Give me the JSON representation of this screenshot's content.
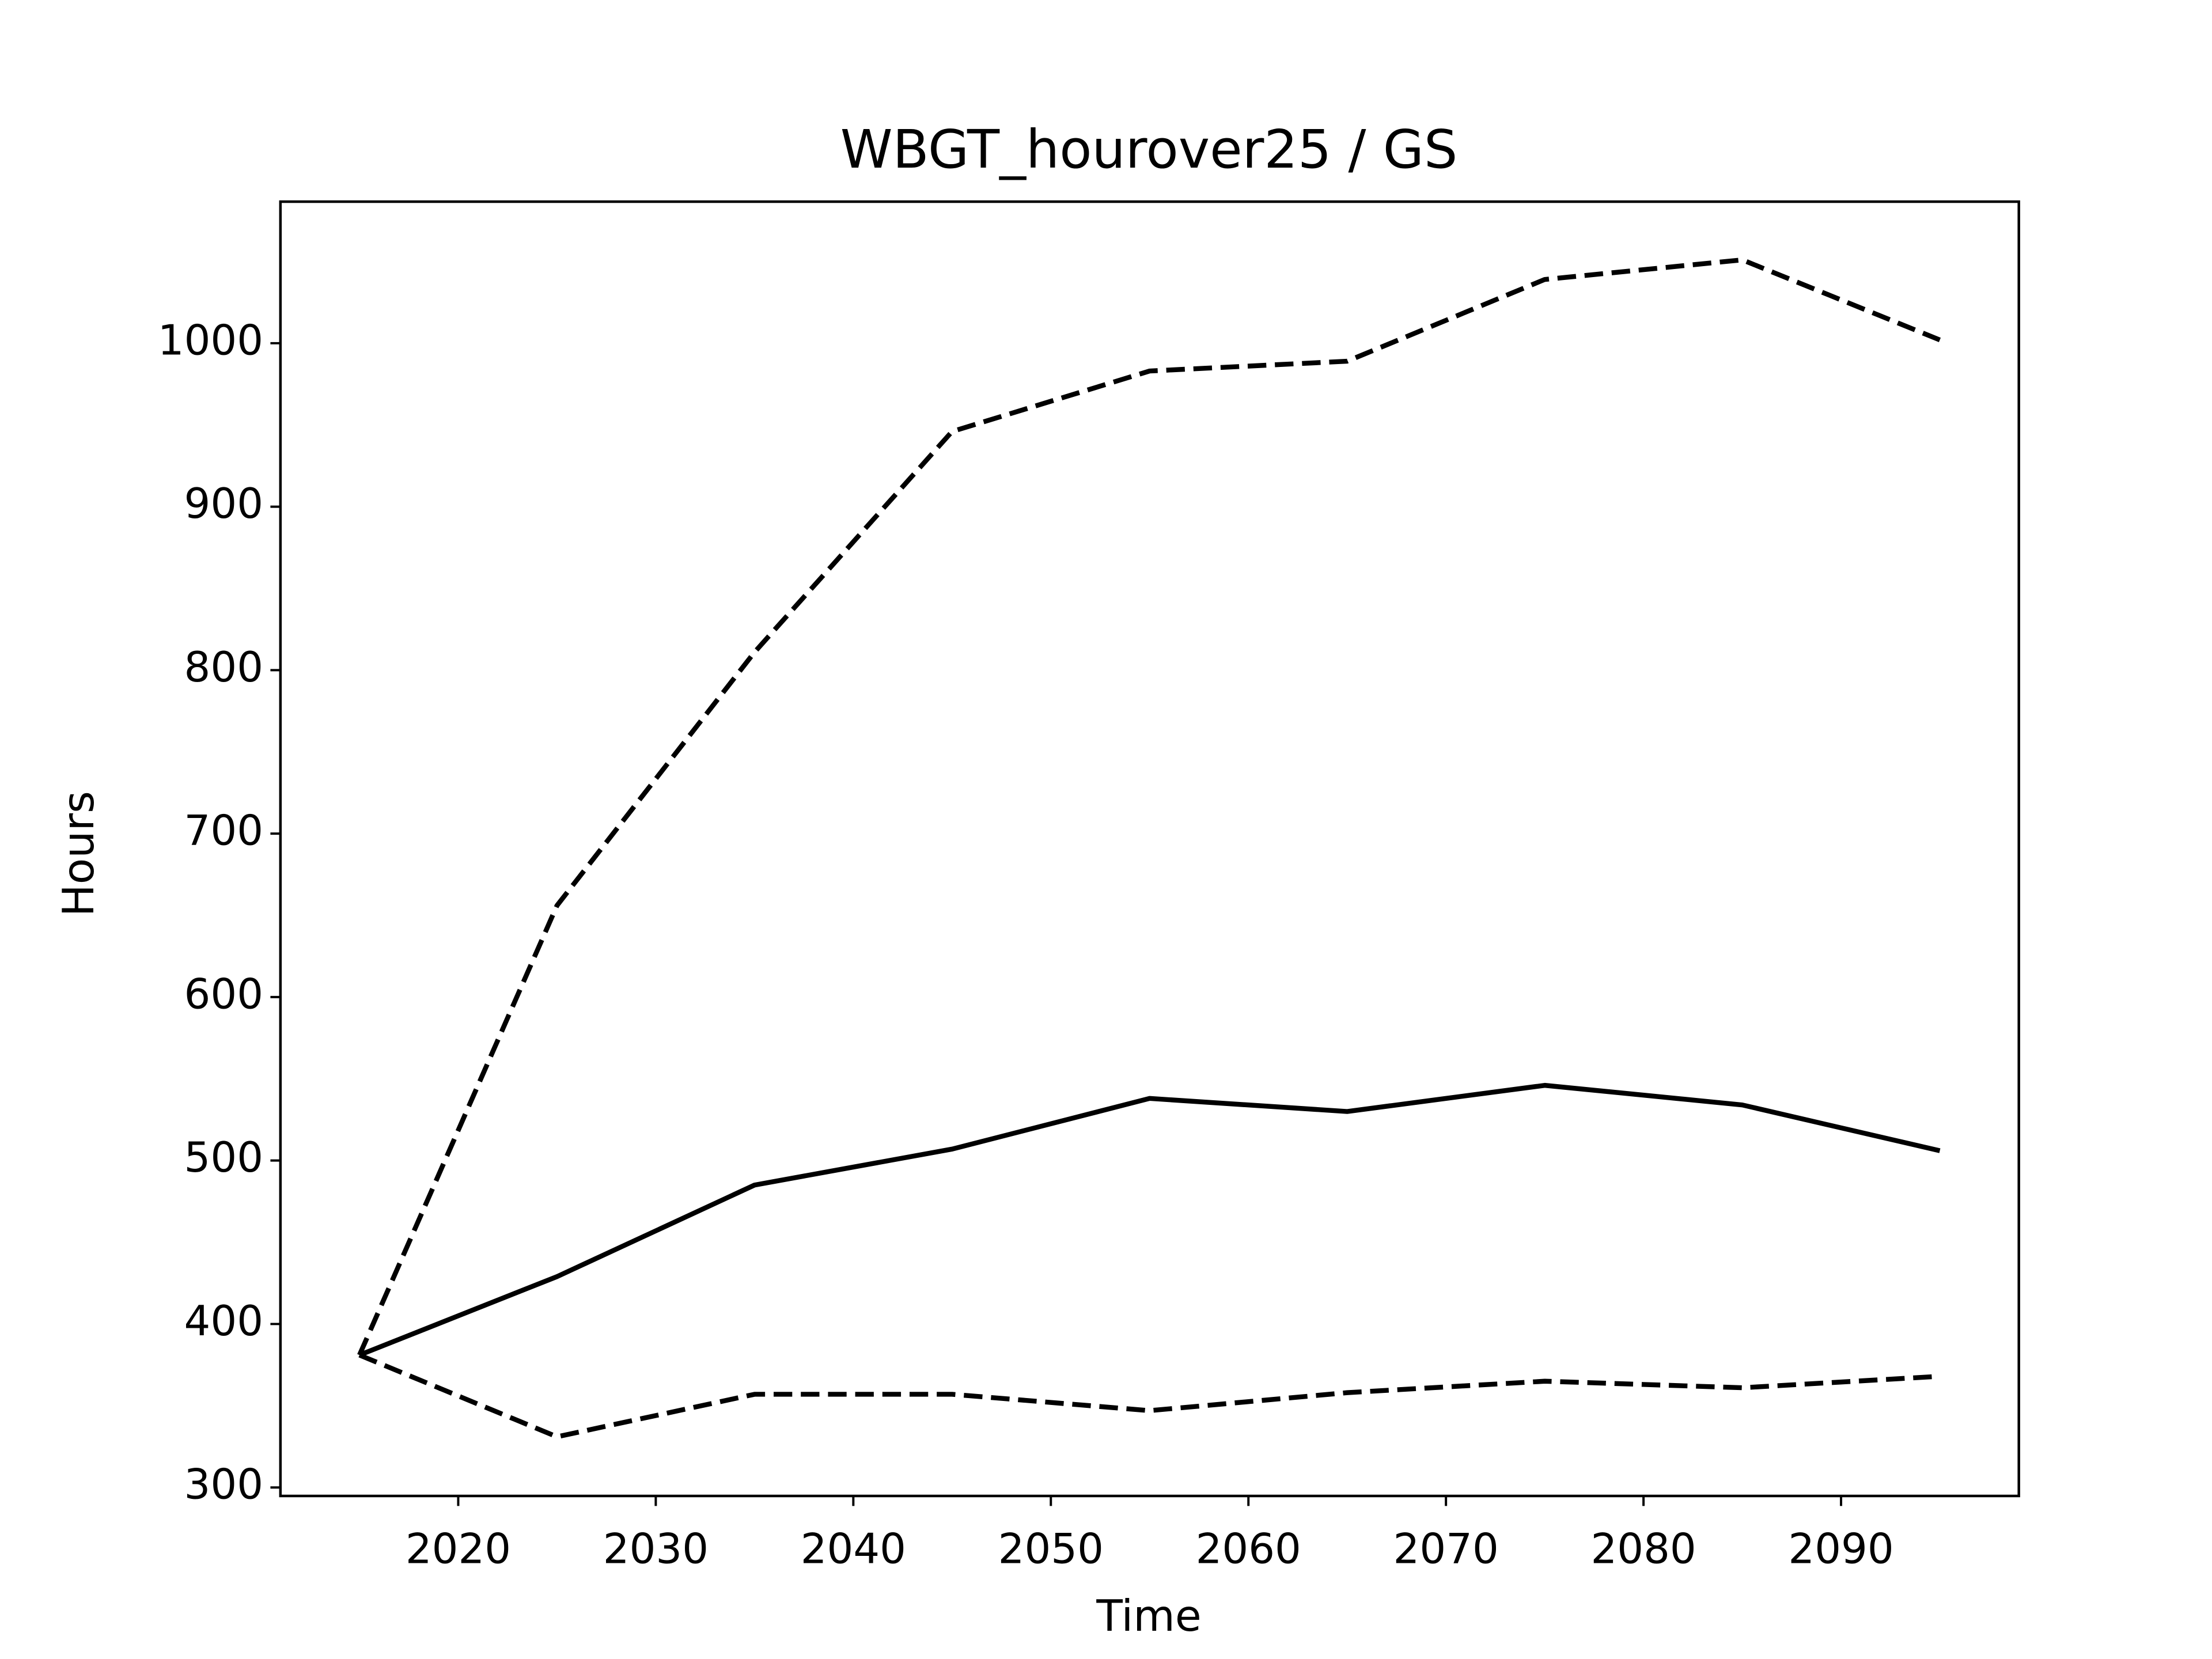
{
  "chart_data": {
    "type": "line",
    "title": "WBGT_hourover25 / GS",
    "xlabel": "Time",
    "ylabel": "Hours",
    "x": [
      2015,
      2025,
      2035,
      2045,
      2055,
      2065,
      2075,
      2085,
      2095
    ],
    "series": [
      {
        "color": "#000000",
        "dash": "solid",
        "values": [
          381,
          429,
          485,
          507,
          538,
          530,
          546,
          534,
          506
        ]
      },
      {
        "color": "#000000",
        "dash": "dashed",
        "values": [
          381,
          656,
          811,
          946,
          983,
          989,
          1039,
          1051,
          1002
        ]
      },
      {
        "color": "#000000",
        "dash": "dashed",
        "values": [
          381,
          331,
          357,
          357,
          347,
          358,
          365,
          361,
          368
        ]
      }
    ],
    "xlim": [
      2011,
      2099
    ],
    "ylim": [
      294.8,
      1086.6
    ],
    "xticks": [
      2020,
      2030,
      2040,
      2050,
      2060,
      2070,
      2080,
      2090
    ],
    "yticks": [
      300,
      400,
      500,
      600,
      700,
      800,
      900,
      1000
    ],
    "grid": false
  }
}
